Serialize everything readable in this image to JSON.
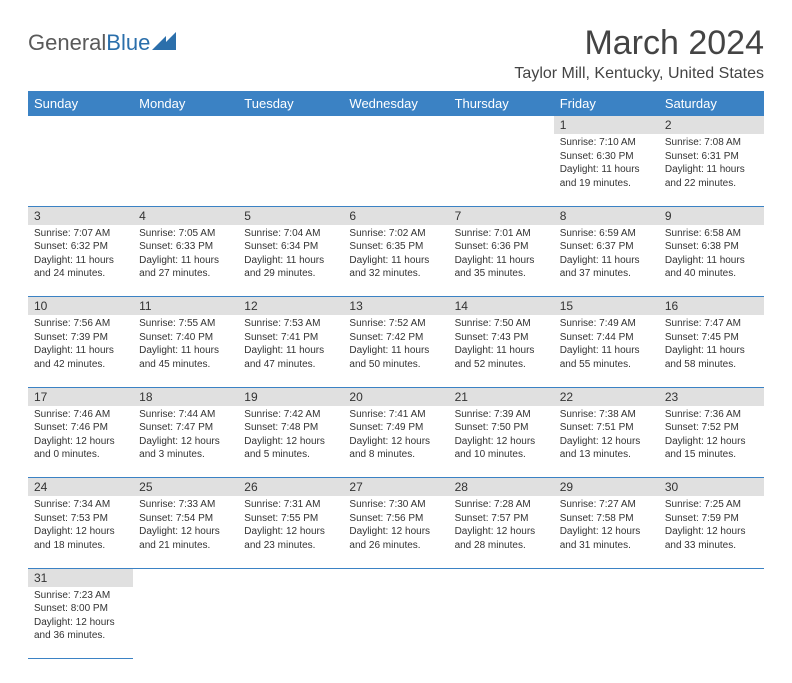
{
  "logo": {
    "text1": "General",
    "text2": "Blue"
  },
  "title": "March 2024",
  "location": "Taylor Mill, Kentucky, United States",
  "colors": {
    "header_bg": "#3b82c4",
    "header_text": "#ffffff",
    "daynum_bg": "#e0e0e0",
    "border": "#3b82c4",
    "text": "#333333",
    "title_color": "#444444",
    "logo_gray": "#5a5a5a",
    "logo_blue": "#2b6fab"
  },
  "weekdays": [
    "Sunday",
    "Monday",
    "Tuesday",
    "Wednesday",
    "Thursday",
    "Friday",
    "Saturday"
  ],
  "weeks": [
    [
      {
        "n": "",
        "sr": "",
        "ss": "",
        "dl": ""
      },
      {
        "n": "",
        "sr": "",
        "ss": "",
        "dl": ""
      },
      {
        "n": "",
        "sr": "",
        "ss": "",
        "dl": ""
      },
      {
        "n": "",
        "sr": "",
        "ss": "",
        "dl": ""
      },
      {
        "n": "",
        "sr": "",
        "ss": "",
        "dl": ""
      },
      {
        "n": "1",
        "sr": "Sunrise: 7:10 AM",
        "ss": "Sunset: 6:30 PM",
        "dl": "Daylight: 11 hours and 19 minutes."
      },
      {
        "n": "2",
        "sr": "Sunrise: 7:08 AM",
        "ss": "Sunset: 6:31 PM",
        "dl": "Daylight: 11 hours and 22 minutes."
      }
    ],
    [
      {
        "n": "3",
        "sr": "Sunrise: 7:07 AM",
        "ss": "Sunset: 6:32 PM",
        "dl": "Daylight: 11 hours and 24 minutes."
      },
      {
        "n": "4",
        "sr": "Sunrise: 7:05 AM",
        "ss": "Sunset: 6:33 PM",
        "dl": "Daylight: 11 hours and 27 minutes."
      },
      {
        "n": "5",
        "sr": "Sunrise: 7:04 AM",
        "ss": "Sunset: 6:34 PM",
        "dl": "Daylight: 11 hours and 29 minutes."
      },
      {
        "n": "6",
        "sr": "Sunrise: 7:02 AM",
        "ss": "Sunset: 6:35 PM",
        "dl": "Daylight: 11 hours and 32 minutes."
      },
      {
        "n": "7",
        "sr": "Sunrise: 7:01 AM",
        "ss": "Sunset: 6:36 PM",
        "dl": "Daylight: 11 hours and 35 minutes."
      },
      {
        "n": "8",
        "sr": "Sunrise: 6:59 AM",
        "ss": "Sunset: 6:37 PM",
        "dl": "Daylight: 11 hours and 37 minutes."
      },
      {
        "n": "9",
        "sr": "Sunrise: 6:58 AM",
        "ss": "Sunset: 6:38 PM",
        "dl": "Daylight: 11 hours and 40 minutes."
      }
    ],
    [
      {
        "n": "10",
        "sr": "Sunrise: 7:56 AM",
        "ss": "Sunset: 7:39 PM",
        "dl": "Daylight: 11 hours and 42 minutes."
      },
      {
        "n": "11",
        "sr": "Sunrise: 7:55 AM",
        "ss": "Sunset: 7:40 PM",
        "dl": "Daylight: 11 hours and 45 minutes."
      },
      {
        "n": "12",
        "sr": "Sunrise: 7:53 AM",
        "ss": "Sunset: 7:41 PM",
        "dl": "Daylight: 11 hours and 47 minutes."
      },
      {
        "n": "13",
        "sr": "Sunrise: 7:52 AM",
        "ss": "Sunset: 7:42 PM",
        "dl": "Daylight: 11 hours and 50 minutes."
      },
      {
        "n": "14",
        "sr": "Sunrise: 7:50 AM",
        "ss": "Sunset: 7:43 PM",
        "dl": "Daylight: 11 hours and 52 minutes."
      },
      {
        "n": "15",
        "sr": "Sunrise: 7:49 AM",
        "ss": "Sunset: 7:44 PM",
        "dl": "Daylight: 11 hours and 55 minutes."
      },
      {
        "n": "16",
        "sr": "Sunrise: 7:47 AM",
        "ss": "Sunset: 7:45 PM",
        "dl": "Daylight: 11 hours and 58 minutes."
      }
    ],
    [
      {
        "n": "17",
        "sr": "Sunrise: 7:46 AM",
        "ss": "Sunset: 7:46 PM",
        "dl": "Daylight: 12 hours and 0 minutes."
      },
      {
        "n": "18",
        "sr": "Sunrise: 7:44 AM",
        "ss": "Sunset: 7:47 PM",
        "dl": "Daylight: 12 hours and 3 minutes."
      },
      {
        "n": "19",
        "sr": "Sunrise: 7:42 AM",
        "ss": "Sunset: 7:48 PM",
        "dl": "Daylight: 12 hours and 5 minutes."
      },
      {
        "n": "20",
        "sr": "Sunrise: 7:41 AM",
        "ss": "Sunset: 7:49 PM",
        "dl": "Daylight: 12 hours and 8 minutes."
      },
      {
        "n": "21",
        "sr": "Sunrise: 7:39 AM",
        "ss": "Sunset: 7:50 PM",
        "dl": "Daylight: 12 hours and 10 minutes."
      },
      {
        "n": "22",
        "sr": "Sunrise: 7:38 AM",
        "ss": "Sunset: 7:51 PM",
        "dl": "Daylight: 12 hours and 13 minutes."
      },
      {
        "n": "23",
        "sr": "Sunrise: 7:36 AM",
        "ss": "Sunset: 7:52 PM",
        "dl": "Daylight: 12 hours and 15 minutes."
      }
    ],
    [
      {
        "n": "24",
        "sr": "Sunrise: 7:34 AM",
        "ss": "Sunset: 7:53 PM",
        "dl": "Daylight: 12 hours and 18 minutes."
      },
      {
        "n": "25",
        "sr": "Sunrise: 7:33 AM",
        "ss": "Sunset: 7:54 PM",
        "dl": "Daylight: 12 hours and 21 minutes."
      },
      {
        "n": "26",
        "sr": "Sunrise: 7:31 AM",
        "ss": "Sunset: 7:55 PM",
        "dl": "Daylight: 12 hours and 23 minutes."
      },
      {
        "n": "27",
        "sr": "Sunrise: 7:30 AM",
        "ss": "Sunset: 7:56 PM",
        "dl": "Daylight: 12 hours and 26 minutes."
      },
      {
        "n": "28",
        "sr": "Sunrise: 7:28 AM",
        "ss": "Sunset: 7:57 PM",
        "dl": "Daylight: 12 hours and 28 minutes."
      },
      {
        "n": "29",
        "sr": "Sunrise: 7:27 AM",
        "ss": "Sunset: 7:58 PM",
        "dl": "Daylight: 12 hours and 31 minutes."
      },
      {
        "n": "30",
        "sr": "Sunrise: 7:25 AM",
        "ss": "Sunset: 7:59 PM",
        "dl": "Daylight: 12 hours and 33 minutes."
      }
    ],
    [
      {
        "n": "31",
        "sr": "Sunrise: 7:23 AM",
        "ss": "Sunset: 8:00 PM",
        "dl": "Daylight: 12 hours and 36 minutes."
      },
      {
        "n": "",
        "sr": "",
        "ss": "",
        "dl": ""
      },
      {
        "n": "",
        "sr": "",
        "ss": "",
        "dl": ""
      },
      {
        "n": "",
        "sr": "",
        "ss": "",
        "dl": ""
      },
      {
        "n": "",
        "sr": "",
        "ss": "",
        "dl": ""
      },
      {
        "n": "",
        "sr": "",
        "ss": "",
        "dl": ""
      },
      {
        "n": "",
        "sr": "",
        "ss": "",
        "dl": ""
      }
    ]
  ]
}
